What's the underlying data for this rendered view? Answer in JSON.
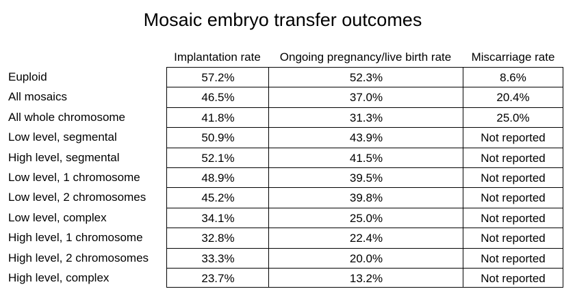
{
  "chart_data": {
    "type": "table",
    "title": "Mosaic embryo transfer outcomes",
    "columns": [
      "Implantation rate",
      "Ongoing pregnancy/live birth rate",
      "Miscarriage rate"
    ],
    "rows": [
      {
        "label": "Euploid",
        "values": [
          "57.2%",
          "52.3%",
          "8.6%"
        ]
      },
      {
        "label": "All mosaics",
        "values": [
          "46.5%",
          "37.0%",
          "20.4%"
        ]
      },
      {
        "label": "All whole chromosome",
        "values": [
          "41.8%",
          "31.3%",
          "25.0%"
        ]
      },
      {
        "label": "Low level, segmental",
        "values": [
          "50.9%",
          "43.9%",
          "Not reported"
        ]
      },
      {
        "label": "High level, segmental",
        "values": [
          "52.1%",
          "41.5%",
          "Not reported"
        ]
      },
      {
        "label": "Low level, 1 chromosome",
        "values": [
          "48.9%",
          "39.5%",
          "Not reported"
        ]
      },
      {
        "label": "Low level, 2 chromosomes",
        "values": [
          "45.2%",
          "39.8%",
          "Not reported"
        ]
      },
      {
        "label": "Low level, complex",
        "values": [
          "34.1%",
          "25.0%",
          "Not reported"
        ]
      },
      {
        "label": "High level, 1 chromosome",
        "values": [
          "32.8%",
          "22.4%",
          "Not reported"
        ]
      },
      {
        "label": "High level, 2 chromosomes",
        "values": [
          "33.3%",
          "20.0%",
          "Not reported"
        ]
      },
      {
        "label": "High level, complex",
        "values": [
          "23.7%",
          "13.2%",
          "Not reported"
        ]
      }
    ]
  }
}
